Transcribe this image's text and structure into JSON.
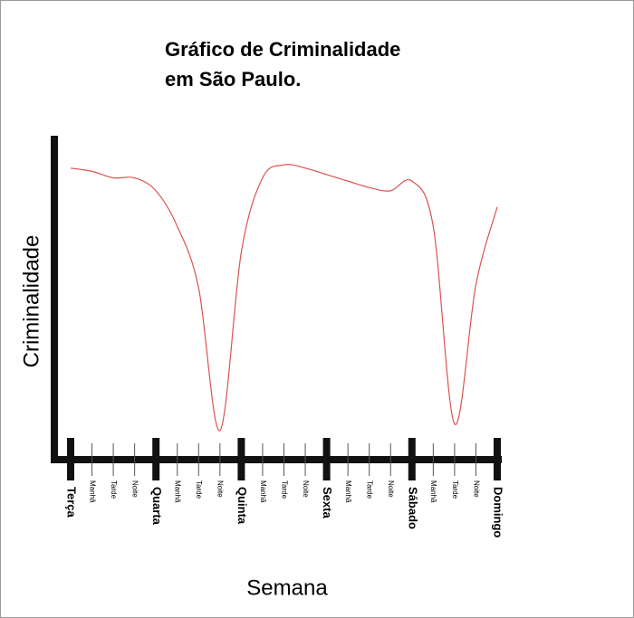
{
  "chart_data": {
    "type": "line",
    "title": [
      "Gráfico de Criminalidade",
      "em São Paulo."
    ],
    "y_label": "Criminalidade",
    "x_label": "Semana",
    "categories": [
      "Terça",
      "Manhã",
      "Tarde",
      "Noite",
      "Quarta",
      "Manhã",
      "Tarde",
      "Noite",
      "Quinta",
      "Manhã",
      "Tarde",
      "Noite",
      "Sexta",
      "Manhã",
      "Tarde",
      "Noite",
      "Sábado",
      "Manhã",
      "Tarde",
      "Noite",
      "Domingo"
    ],
    "major": [
      true,
      false,
      false,
      false,
      true,
      false,
      false,
      false,
      true,
      false,
      false,
      false,
      true,
      false,
      false,
      false,
      true,
      false,
      false,
      false,
      true
    ],
    "values": [
      90,
      89,
      87,
      87,
      83,
      72,
      53,
      9,
      64,
      87,
      91,
      90,
      88,
      86,
      84,
      83,
      86,
      72,
      11,
      54,
      78
    ],
    "color": "#d9534f",
    "ylim": [
      0,
      100
    ]
  }
}
